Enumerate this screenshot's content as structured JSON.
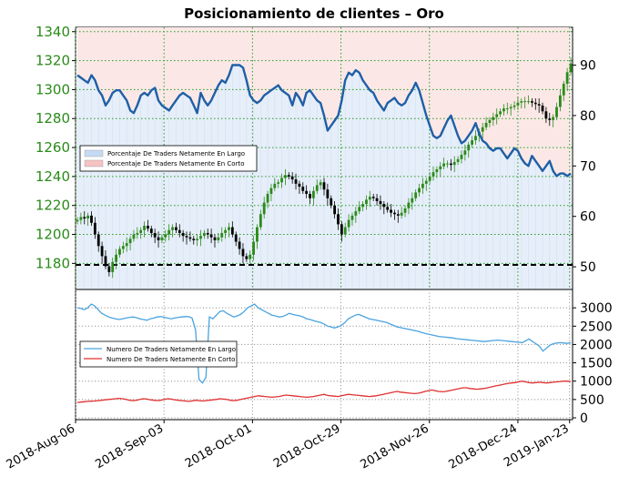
{
  "title": "Posicionamiento de clientes – Oro",
  "chart_data": [
    {
      "type": "line",
      "panel": "top",
      "left_axis": {
        "ticks": [
          1180,
          1200,
          1220,
          1240,
          1260,
          1280,
          1300,
          1320,
          1340
        ],
        "ylim": [
          1162,
          1343
        ],
        "color": "#2a8a1a"
      },
      "right_axis": {
        "ticks": [
          50,
          60,
          70,
          80,
          90
        ],
        "ylim": [
          45.5,
          97.5
        ]
      },
      "x_ticks": [
        "2018-Aug-06",
        "2018-Sep-03",
        "2018-Oct-01",
        "2018-Oct-29",
        "2018-Nov-26",
        "2018-Dec-24",
        "2019-Jan-23"
      ],
      "reference_line": {
        "value": 1179,
        "style": "dashed",
        "color": "#000000"
      },
      "legend": {
        "position": "middle-left",
        "entries": [
          {
            "label": "Porcentaje De Traders Netamente En Largo",
            "color": "#c5daf3"
          },
          {
            "label": "Porcentaje De Traders Netamente En Corto",
            "color": "#f6c2c2"
          }
        ]
      },
      "colors": {
        "net_long_line": "#1f5fa6",
        "bull_candle": "#2a8a1a",
        "bear_candle": "#000000",
        "grid": "#2a9a2a"
      },
      "net_long_pct": [
        88,
        87.5,
        87,
        86.5,
        88,
        87,
        85,
        84,
        82,
        83,
        84.5,
        85,
        85,
        84,
        83,
        81,
        80.5,
        82,
        84,
        84.5,
        84,
        85,
        85.5,
        83,
        82,
        81.5,
        81,
        82,
        83,
        84,
        84.5,
        84,
        83.5,
        82,
        80.5,
        84.5,
        83,
        82,
        83,
        84.5,
        86,
        87,
        86.5,
        88,
        90,
        90,
        90,
        89.5,
        87,
        84,
        83,
        82.5,
        83,
        84,
        84.5,
        85,
        85.5,
        86,
        85,
        84.5,
        84,
        82,
        84.5,
        83.5,
        82,
        84.5,
        85,
        84,
        83,
        82.5,
        80,
        77,
        78,
        79,
        80,
        83,
        87,
        88.5,
        88,
        89,
        88.5,
        87,
        86,
        85,
        84.5,
        83,
        82,
        81,
        82.5,
        83,
        83.5,
        82.5,
        82,
        82.5,
        84,
        85,
        86.5,
        85,
        82.5,
        80,
        78,
        76,
        75.5,
        76,
        77.5,
        79,
        80,
        78,
        76,
        74.5,
        75,
        76,
        77,
        78.5,
        76.5,
        75,
        74.5,
        73.5,
        73,
        73.5,
        73.5,
        72.5,
        71.5,
        72.5,
        73.5,
        73,
        71.5,
        70.5,
        70,
        72,
        71,
        70,
        69,
        70,
        71,
        69,
        68,
        68.5,
        68.5,
        68,
        68.5
      ],
      "long_traders_ratio_note": "values are percent of traders net long; short = 100 - long",
      "price_close": [
        1210,
        1212,
        1211,
        1213,
        1208,
        1200,
        1192,
        1185,
        1178,
        1174,
        1181,
        1186,
        1190,
        1192,
        1194,
        1197,
        1200,
        1201,
        1203,
        1206,
        1204,
        1201,
        1198,
        1196,
        1198,
        1200,
        1203,
        1205,
        1203,
        1201,
        1199,
        1198,
        1197,
        1196,
        1197,
        1199,
        1201,
        1200,
        1198,
        1196,
        1198,
        1201,
        1203,
        1205,
        1200,
        1195,
        1190,
        1185,
        1183,
        1186,
        1195,
        1205,
        1214,
        1222,
        1228,
        1232,
        1235,
        1236,
        1239,
        1241,
        1240,
        1238,
        1235,
        1233,
        1230,
        1228,
        1225,
        1230,
        1234,
        1236,
        1231,
        1225,
        1220,
        1214,
        1207,
        1200,
        1205,
        1210,
        1213,
        1216,
        1219,
        1221,
        1224,
        1226,
        1225,
        1223,
        1221,
        1219,
        1217,
        1215,
        1214,
        1213,
        1215,
        1218,
        1222,
        1225,
        1229,
        1232,
        1235,
        1237,
        1240,
        1243,
        1245,
        1247,
        1249,
        1249,
        1248,
        1250,
        1252,
        1255,
        1258,
        1262,
        1265,
        1268,
        1271,
        1274,
        1277,
        1279,
        1281,
        1283,
        1285,
        1287,
        1287,
        1288,
        1289,
        1291,
        1292,
        1292,
        1292,
        1291,
        1290,
        1289,
        1285,
        1280,
        1279,
        1281,
        1288,
        1296,
        1304,
        1312,
        1318,
        1320,
        1320
      ]
    },
    {
      "type": "line",
      "panel": "bottom",
      "right_axis": {
        "ticks": [
          0,
          500,
          1000,
          1500,
          2000,
          2500,
          3000
        ],
        "ylim": [
          -50,
          3500
        ]
      },
      "legend": {
        "position": "middle-left",
        "entries": [
          {
            "label": "Numero De Traders Netamente En Largo",
            "color": "#4aa3df"
          },
          {
            "label": "Numero De Traders Netamente En Corto",
            "color": "#e03030"
          }
        ]
      },
      "series": [
        {
          "name": "Numero De Traders Netamente En Largo",
          "values": [
            3000,
            2980,
            2950,
            3000,
            3100,
            3050,
            2950,
            2850,
            2800,
            2750,
            2720,
            2700,
            2680,
            2700,
            2720,
            2740,
            2750,
            2730,
            2700,
            2680,
            2660,
            2700,
            2720,
            2750,
            2760,
            2740,
            2720,
            2700,
            2720,
            2740,
            2750,
            2760,
            2760,
            2720,
            2400,
            1050,
            950,
            1100,
            2750,
            2700,
            2800,
            2900,
            2920,
            2850,
            2800,
            2750,
            2780,
            2820,
            2900,
            3000,
            3050,
            3100,
            3000,
            2950,
            2900,
            2850,
            2800,
            2780,
            2750,
            2760,
            2800,
            2850,
            2820,
            2800,
            2780,
            2750,
            2700,
            2680,
            2650,
            2620,
            2600,
            2560,
            2500,
            2480,
            2450,
            2480,
            2520,
            2600,
            2700,
            2750,
            2800,
            2820,
            2780,
            2740,
            2700,
            2680,
            2660,
            2640,
            2620,
            2600,
            2560,
            2520,
            2480,
            2460,
            2440,
            2420,
            2400,
            2380,
            2360,
            2330,
            2300,
            2280,
            2260,
            2240,
            2220,
            2210,
            2200,
            2190,
            2180,
            2160,
            2150,
            2140,
            2130,
            2120,
            2110,
            2100,
            2090,
            2080,
            2090,
            2100,
            2110,
            2120,
            2110,
            2100,
            2090,
            2080,
            2070,
            2060,
            2050,
            2100,
            2150,
            2080,
            2020,
            1950,
            1820,
            1900,
            1980,
            2020,
            2040,
            2050,
            2040,
            2030,
            2050
          ]
        },
        {
          "name": "Numero De Traders Netamente En Corto",
          "values": [
            420,
            430,
            440,
            450,
            455,
            460,
            470,
            480,
            490,
            500,
            510,
            520,
            530,
            520,
            500,
            480,
            470,
            480,
            500,
            520,
            510,
            490,
            480,
            470,
            480,
            500,
            520,
            510,
            490,
            480,
            470,
            460,
            450,
            460,
            480,
            470,
            460,
            470,
            480,
            490,
            500,
            520,
            510,
            500,
            480,
            470,
            480,
            500,
            520,
            540,
            560,
            580,
            600,
            590,
            580,
            570,
            560,
            570,
            580,
            600,
            620,
            610,
            600,
            590,
            580,
            570,
            560,
            570,
            580,
            600,
            620,
            640,
            610,
            600,
            590,
            580,
            600,
            620,
            640,
            630,
            620,
            610,
            600,
            590,
            580,
            590,
            600,
            620,
            640,
            660,
            680,
            700,
            720,
            700,
            690,
            680,
            670,
            660,
            670,
            690,
            720,
            740,
            760,
            740,
            720,
            710,
            720,
            740,
            760,
            780,
            800,
            820,
            820,
            800,
            790,
            780,
            790,
            800,
            820,
            840,
            860,
            880,
            900,
            920,
            940,
            950,
            960,
            980,
            1000,
            980,
            960,
            950,
            960,
            970,
            960,
            950,
            960,
            970,
            980,
            990,
            1000,
            1000,
            990
          ]
        }
      ]
    }
  ]
}
